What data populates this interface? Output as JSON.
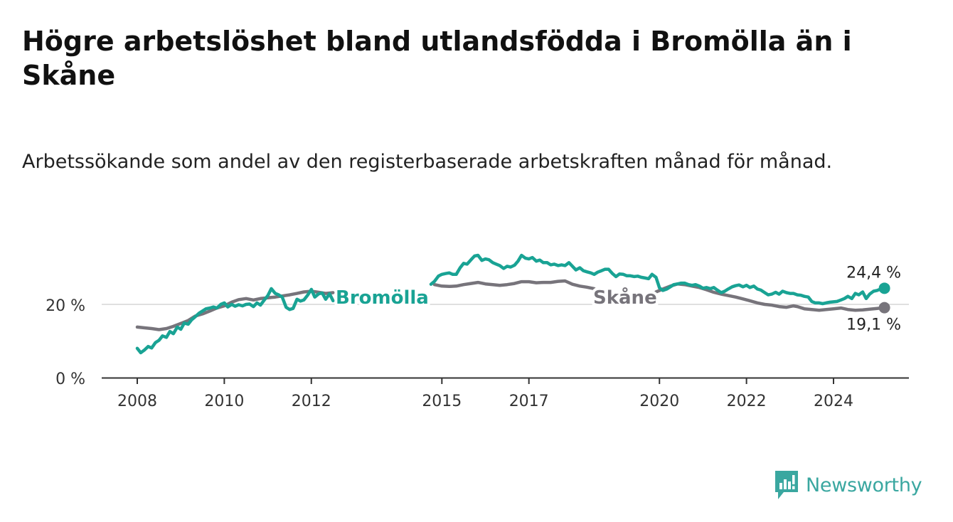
{
  "title": "Högre arbetslöshet bland utlandsfödda i Bromölla än i Skåne",
  "subtitle": "Arbetssökande som andel av den registerbaserade arbetskraften månad för månad.",
  "brand": {
    "name": "Newsworthy",
    "color": "#3aa7a0",
    "icon": "newsworthy-logo-icon"
  },
  "colors": {
    "bromolla": "#19a394",
    "skane": "#77747b",
    "grid": "#d6d6d6",
    "axis": "#333333"
  },
  "chart_data": {
    "type": "line",
    "ylim": [
      0,
      40
    ],
    "grid": true,
    "y_ticks": [
      {
        "value": 0,
        "label": "0 %"
      },
      {
        "value": 20,
        "label": "20 %"
      }
    ],
    "x_ticks": [
      {
        "value": 2008,
        "label": "2008"
      },
      {
        "value": 2010,
        "label": "2010"
      },
      {
        "value": 2012,
        "label": "2012"
      },
      {
        "value": 2015,
        "label": "2015"
      },
      {
        "value": 2017,
        "label": "2017"
      },
      {
        "value": 2020,
        "label": "2020"
      },
      {
        "value": 2022,
        "label": "2022"
      },
      {
        "value": 2024,
        "label": "2024"
      }
    ],
    "xlim": [
      2007.2,
      2025.75
    ],
    "series": [
      {
        "name": "Bromölla",
        "color": "#19a394",
        "end_label": "24,4 %",
        "end_value": 24.4,
        "points": [
          [
            2008.0,
            8.0
          ],
          [
            2008.08,
            6.8
          ],
          [
            2008.17,
            7.6
          ],
          [
            2008.25,
            8.5
          ],
          [
            2008.33,
            8.1
          ],
          [
            2008.42,
            9.6
          ],
          [
            2008.5,
            10.2
          ],
          [
            2008.58,
            11.4
          ],
          [
            2008.67,
            11.0
          ],
          [
            2008.75,
            12.6
          ],
          [
            2008.83,
            12.0
          ],
          [
            2008.92,
            13.8
          ],
          [
            2009.0,
            13.2
          ],
          [
            2009.08,
            14.9
          ],
          [
            2009.17,
            14.6
          ],
          [
            2009.25,
            15.8
          ],
          [
            2009.33,
            16.6
          ],
          [
            2009.42,
            17.6
          ],
          [
            2009.5,
            18.2
          ],
          [
            2009.58,
            18.8
          ],
          [
            2009.67,
            19.0
          ],
          [
            2009.75,
            19.3
          ],
          [
            2009.83,
            19.0
          ],
          [
            2009.92,
            20.0
          ],
          [
            2010.0,
            20.4
          ],
          [
            2010.08,
            19.3
          ],
          [
            2010.17,
            20.0
          ],
          [
            2010.25,
            19.5
          ],
          [
            2010.33,
            19.9
          ],
          [
            2010.42,
            19.6
          ],
          [
            2010.5,
            20.0
          ],
          [
            2010.58,
            20.1
          ],
          [
            2010.67,
            19.4
          ],
          [
            2010.75,
            20.4
          ],
          [
            2010.83,
            19.8
          ],
          [
            2010.92,
            21.2
          ],
          [
            2011.0,
            22.4
          ],
          [
            2011.08,
            24.3
          ],
          [
            2011.17,
            23.0
          ],
          [
            2011.25,
            22.6
          ],
          [
            2011.33,
            22.0
          ],
          [
            2011.42,
            19.2
          ],
          [
            2011.5,
            18.6
          ],
          [
            2011.58,
            18.9
          ],
          [
            2011.67,
            21.4
          ],
          [
            2011.75,
            20.9
          ],
          [
            2011.83,
            21.2
          ],
          [
            2011.92,
            22.6
          ],
          [
            2012.0,
            24.1
          ],
          [
            2012.08,
            22.0
          ],
          [
            2012.17,
            22.9
          ],
          [
            2012.25,
            23.1
          ],
          [
            2012.33,
            21.4
          ],
          [
            2012.42,
            22.9
          ],
          [
            2012.5,
            21.0
          ]
        ],
        "points_b": [
          [
            2014.75,
            25.5
          ],
          [
            2014.83,
            26.3
          ],
          [
            2014.92,
            27.7
          ],
          [
            2015.0,
            28.2
          ],
          [
            2015.08,
            28.4
          ],
          [
            2015.17,
            28.6
          ],
          [
            2015.25,
            28.2
          ],
          [
            2015.33,
            28.2
          ],
          [
            2015.42,
            30.0
          ],
          [
            2015.5,
            31.2
          ],
          [
            2015.58,
            31.0
          ],
          [
            2015.67,
            32.2
          ],
          [
            2015.75,
            33.2
          ],
          [
            2015.83,
            33.4
          ],
          [
            2015.92,
            32.0
          ],
          [
            2016.0,
            32.4
          ],
          [
            2016.08,
            32.2
          ],
          [
            2016.17,
            31.4
          ],
          [
            2016.25,
            31.0
          ],
          [
            2016.33,
            30.6
          ],
          [
            2016.42,
            29.8
          ],
          [
            2016.5,
            30.4
          ],
          [
            2016.58,
            30.2
          ],
          [
            2016.67,
            30.7
          ],
          [
            2016.75,
            31.8
          ],
          [
            2016.83,
            33.4
          ],
          [
            2016.92,
            32.6
          ],
          [
            2017.0,
            32.4
          ],
          [
            2017.08,
            32.8
          ],
          [
            2017.17,
            31.8
          ],
          [
            2017.25,
            32.1
          ],
          [
            2017.33,
            31.4
          ],
          [
            2017.42,
            31.4
          ],
          [
            2017.5,
            30.8
          ],
          [
            2017.58,
            31.0
          ],
          [
            2017.67,
            30.6
          ],
          [
            2017.75,
            30.8
          ],
          [
            2017.83,
            30.6
          ],
          [
            2017.92,
            31.4
          ],
          [
            2018.0,
            30.4
          ],
          [
            2018.08,
            29.4
          ],
          [
            2018.17,
            30.0
          ],
          [
            2018.25,
            29.2
          ],
          [
            2018.33,
            28.9
          ],
          [
            2018.42,
            28.6
          ],
          [
            2018.5,
            28.2
          ],
          [
            2018.58,
            28.8
          ],
          [
            2018.67,
            29.2
          ],
          [
            2018.75,
            29.6
          ],
          [
            2018.83,
            29.6
          ],
          [
            2018.92,
            28.4
          ],
          [
            2019.0,
            27.6
          ],
          [
            2019.08,
            28.3
          ],
          [
            2019.17,
            28.2
          ],
          [
            2019.25,
            27.8
          ],
          [
            2019.33,
            27.8
          ],
          [
            2019.42,
            27.6
          ],
          [
            2019.5,
            27.7
          ],
          [
            2019.58,
            27.4
          ],
          [
            2019.67,
            27.2
          ],
          [
            2019.75,
            27.0
          ],
          [
            2019.83,
            28.2
          ],
          [
            2019.92,
            27.4
          ],
          [
            2020.0,
            24.5
          ],
          [
            2020.08,
            23.8
          ],
          [
            2020.17,
            24.2
          ],
          [
            2020.25,
            24.8
          ],
          [
            2020.33,
            25.4
          ],
          [
            2020.42,
            25.6
          ],
          [
            2020.5,
            25.8
          ],
          [
            2020.58,
            25.8
          ],
          [
            2020.67,
            25.4
          ],
          [
            2020.75,
            25.2
          ],
          [
            2020.83,
            25.4
          ],
          [
            2020.92,
            25.0
          ],
          [
            2021.0,
            24.4
          ],
          [
            2021.08,
            24.6
          ],
          [
            2021.17,
            24.3
          ],
          [
            2021.25,
            24.6
          ],
          [
            2021.33,
            23.9
          ],
          [
            2021.42,
            23.2
          ],
          [
            2021.5,
            23.6
          ],
          [
            2021.58,
            24.2
          ],
          [
            2021.67,
            24.8
          ],
          [
            2021.75,
            25.1
          ],
          [
            2021.83,
            25.3
          ],
          [
            2021.92,
            24.8
          ],
          [
            2022.0,
            25.2
          ],
          [
            2022.08,
            24.6
          ],
          [
            2022.17,
            25.0
          ],
          [
            2022.25,
            24.2
          ],
          [
            2022.33,
            23.9
          ],
          [
            2022.42,
            23.2
          ],
          [
            2022.5,
            22.6
          ],
          [
            2022.58,
            22.8
          ],
          [
            2022.67,
            23.3
          ],
          [
            2022.75,
            22.8
          ],
          [
            2022.83,
            23.6
          ],
          [
            2022.92,
            23.2
          ],
          [
            2023.0,
            23.0
          ],
          [
            2023.08,
            23.0
          ],
          [
            2023.17,
            22.6
          ],
          [
            2023.25,
            22.5
          ],
          [
            2023.33,
            22.2
          ],
          [
            2023.42,
            22.0
          ],
          [
            2023.5,
            20.8
          ],
          [
            2023.58,
            20.4
          ],
          [
            2023.67,
            20.4
          ],
          [
            2023.75,
            20.2
          ],
          [
            2023.83,
            20.4
          ],
          [
            2023.92,
            20.6
          ],
          [
            2024.0,
            20.7
          ],
          [
            2024.08,
            20.8
          ],
          [
            2024.17,
            21.2
          ],
          [
            2024.25,
            21.6
          ],
          [
            2024.33,
            22.2
          ],
          [
            2024.42,
            21.6
          ],
          [
            2024.5,
            23.0
          ],
          [
            2024.58,
            22.6
          ],
          [
            2024.67,
            23.4
          ],
          [
            2024.75,
            21.6
          ],
          [
            2024.83,
            22.8
          ],
          [
            2024.92,
            23.6
          ],
          [
            2025.0,
            23.8
          ],
          [
            2025.08,
            24.2
          ],
          [
            2025.17,
            24.4
          ]
        ]
      },
      {
        "name": "Skåne",
        "color": "#77747b",
        "end_label": "19,1 %",
        "end_value": 19.1,
        "points": [
          [
            2008.0,
            13.8
          ],
          [
            2008.17,
            13.6
          ],
          [
            2008.33,
            13.4
          ],
          [
            2008.5,
            13.1
          ],
          [
            2008.67,
            13.4
          ],
          [
            2008.83,
            14.0
          ],
          [
            2009.0,
            14.8
          ],
          [
            2009.17,
            15.6
          ],
          [
            2009.33,
            16.8
          ],
          [
            2009.5,
            17.4
          ],
          [
            2009.67,
            18.2
          ],
          [
            2009.83,
            19.0
          ],
          [
            2010.0,
            19.6
          ],
          [
            2010.17,
            20.6
          ],
          [
            2010.33,
            21.3
          ],
          [
            2010.5,
            21.6
          ],
          [
            2010.67,
            21.2
          ],
          [
            2010.83,
            21.6
          ],
          [
            2011.0,
            21.8
          ],
          [
            2011.17,
            22.0
          ],
          [
            2011.33,
            22.3
          ],
          [
            2011.5,
            22.6
          ],
          [
            2011.67,
            23.0
          ],
          [
            2011.83,
            23.4
          ],
          [
            2012.0,
            23.6
          ],
          [
            2012.17,
            23.3
          ],
          [
            2012.33,
            23.0
          ],
          [
            2012.5,
            23.2
          ]
        ],
        "points_b": [
          [
            2014.83,
            25.4
          ],
          [
            2015.0,
            25.0
          ],
          [
            2015.17,
            24.9
          ],
          [
            2015.33,
            25.0
          ],
          [
            2015.5,
            25.4
          ],
          [
            2015.67,
            25.7
          ],
          [
            2015.83,
            26.0
          ],
          [
            2016.0,
            25.6
          ],
          [
            2016.17,
            25.4
          ],
          [
            2016.33,
            25.2
          ],
          [
            2016.5,
            25.4
          ],
          [
            2016.67,
            25.7
          ],
          [
            2016.83,
            26.2
          ],
          [
            2017.0,
            26.2
          ],
          [
            2017.17,
            25.9
          ],
          [
            2017.33,
            26.0
          ],
          [
            2017.5,
            26.0
          ],
          [
            2017.67,
            26.3
          ],
          [
            2017.83,
            26.4
          ],
          [
            2018.0,
            25.5
          ],
          [
            2018.17,
            25.0
          ],
          [
            2018.33,
            24.7
          ],
          [
            2018.5,
            24.3
          ]
        ],
        "points_c": [
          [
            2019.92,
            23.4
          ],
          [
            2020.08,
            24.2
          ],
          [
            2020.25,
            25.0
          ],
          [
            2020.42,
            25.6
          ],
          [
            2020.58,
            25.4
          ],
          [
            2020.75,
            25.0
          ],
          [
            2020.92,
            24.6
          ],
          [
            2021.08,
            24.0
          ],
          [
            2021.25,
            23.3
          ],
          [
            2021.42,
            22.8
          ],
          [
            2021.58,
            22.4
          ],
          [
            2021.75,
            22.0
          ],
          [
            2021.92,
            21.5
          ],
          [
            2022.08,
            21.0
          ],
          [
            2022.25,
            20.4
          ],
          [
            2022.42,
            20.0
          ],
          [
            2022.58,
            19.8
          ],
          [
            2022.75,
            19.4
          ],
          [
            2022.92,
            19.2
          ],
          [
            2023.08,
            19.6
          ],
          [
            2023.17,
            19.4
          ],
          [
            2023.33,
            18.8
          ],
          [
            2023.5,
            18.6
          ],
          [
            2023.67,
            18.4
          ],
          [
            2023.83,
            18.6
          ],
          [
            2024.0,
            18.8
          ],
          [
            2024.17,
            19.0
          ],
          [
            2024.33,
            18.6
          ],
          [
            2024.5,
            18.4
          ],
          [
            2024.67,
            18.5
          ],
          [
            2024.83,
            18.7
          ],
          [
            2025.0,
            18.9
          ],
          [
            2025.17,
            19.1
          ]
        ]
      }
    ],
    "annotations": [
      {
        "text": "Bromölla",
        "series": 0
      },
      {
        "text": "Skåne",
        "series": 1
      }
    ]
  }
}
